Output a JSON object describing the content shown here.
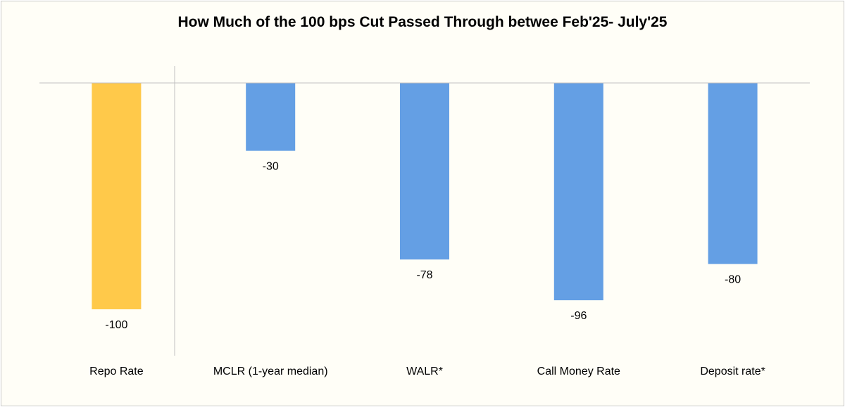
{
  "chart_data": {
    "type": "bar",
    "title": "How Much of the 100 bps Cut Passed Through betwee Feb'25- July'25",
    "categories": [
      "Repo Rate",
      "MCLR (1-year median)",
      "WALR*",
      "Call Money Rate",
      "Deposit rate*"
    ],
    "values": [
      -100,
      -30,
      -78,
      -96,
      -80
    ],
    "data_labels": [
      "-100",
      "-30",
      "-78",
      "-96",
      "-80"
    ],
    "ylim": [
      -100,
      0
    ],
    "grid": false,
    "legend": "none",
    "colors": [
      "#ffc94a",
      "#649fe4",
      "#649fe4",
      "#649fe4",
      "#649fe4"
    ],
    "axis_color": "#c0c0c0"
  }
}
